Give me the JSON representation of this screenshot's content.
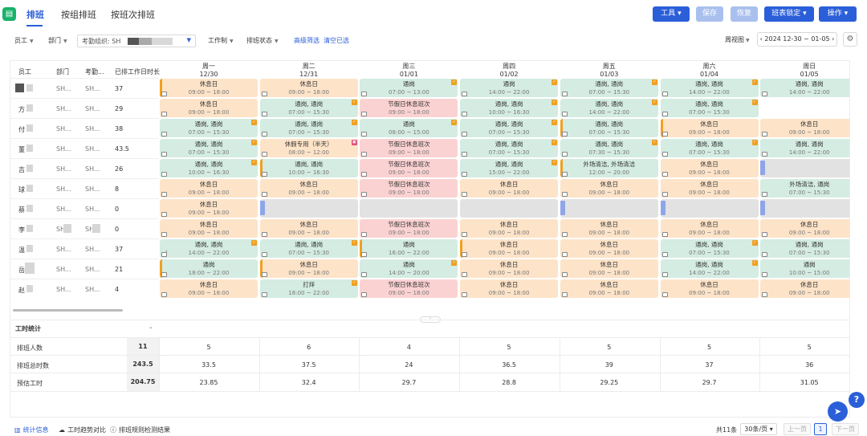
{
  "app_icon": "calendar-icon",
  "tabs": [
    {
      "label": "排班",
      "active": true
    },
    {
      "label": "按组排班",
      "active": false
    },
    {
      "label": "按班次排班",
      "active": false
    }
  ],
  "toolbar": {
    "tools": "工具",
    "save": "保存",
    "restore": "恢复",
    "lock": "班表锁定",
    "operate": "操作"
  },
  "filters": {
    "employee": "员工",
    "dept": "部门",
    "org_label": "考勤组织: SH",
    "work_system": "工作制",
    "shift_status": "排班状态",
    "advanced": "高级筛选",
    "clear": "清空已选",
    "view_mode": "周视图",
    "date_range": "2024 12-30 ~ 01-05",
    "prev_icon": "chevron-left-icon",
    "next_icon": "chevron-right-icon",
    "settings_icon": "gear-icon"
  },
  "columns": {
    "employee": "员工",
    "dept": "部门",
    "attendance": "考勤...",
    "scheduled_days": "已排工作日时长"
  },
  "days": [
    {
      "week": "周一",
      "date": "12/30"
    },
    {
      "week": "周二",
      "date": "12/31"
    },
    {
      "week": "周三",
      "date": "01/01"
    },
    {
      "week": "周四",
      "date": "01/02"
    },
    {
      "week": "周五",
      "date": "01/03"
    },
    {
      "week": "周六",
      "date": "01/04"
    },
    {
      "week": "周日",
      "date": "01/05"
    }
  ],
  "rows": [
    {
      "name": "",
      "dept": "SH...",
      "att": "SH...",
      "total": "37",
      "cells": [
        {
          "t": "rest",
          "l1": "休息日",
          "l2": "09:00 ~ 18:00",
          "bar": true
        },
        {
          "t": "rest",
          "l1": "休息日",
          "l2": "09:00 ~ 18:00"
        },
        {
          "t": "green",
          "l1": "通岗",
          "l2": "07:00 ~ 13:00",
          "badge": true
        },
        {
          "t": "green",
          "l1": "通岗",
          "l2": "14:00 ~ 22:00",
          "badge": true
        },
        {
          "t": "green",
          "l1": "通岗, 通岗",
          "l2": "07:00 ~ 15:30",
          "badge": true
        },
        {
          "t": "green",
          "l1": "通岗, 通岗",
          "l2": "14:00 ~ 22:00",
          "badge": true
        },
        {
          "t": "green",
          "l1": "通岗, 通岗",
          "l2": "14:00 ~ 22:00",
          "badge": true
        }
      ]
    },
    {
      "name": "方",
      "dept": "SH...",
      "att": "SH...",
      "total": "29",
      "cells": [
        {
          "t": "rest",
          "l1": "休息日",
          "l2": "09:00 ~ 18:00"
        },
        {
          "t": "green",
          "l1": "通岗, 通岗",
          "l2": "07:00 ~ 15:30",
          "badge": true
        },
        {
          "t": "red",
          "l1": "节假日休息班次",
          "l2": "09:00 ~ 18:00"
        },
        {
          "t": "green",
          "l1": "通岗, 通岗",
          "l2": "10:00 ~ 16:30",
          "badge": true
        },
        {
          "t": "green",
          "l1": "通岗, 通岗",
          "l2": "14:00 ~ 22:00",
          "badge": true
        },
        {
          "t": "green",
          "l1": "通岗, 通岗",
          "l2": "07:00 ~ 15:30",
          "badge": true
        },
        {
          "t": "white",
          "l1": "",
          "l2": ""
        }
      ]
    },
    {
      "name": "付",
      "dept": "SH...",
      "att": "SH...",
      "total": "38",
      "cells": [
        {
          "t": "green",
          "l1": "通岗, 通岗",
          "l2": "07:00 ~ 15:30",
          "badge": true
        },
        {
          "t": "green",
          "l1": "通岗, 通岗",
          "l2": "07:00 ~ 15:30",
          "badge": true
        },
        {
          "t": "green",
          "l1": "通岗",
          "l2": "08:00 ~ 15:00",
          "badge": true
        },
        {
          "t": "green",
          "l1": "通岗, 通岗",
          "l2": "07:00 ~ 15:30",
          "badge": true
        },
        {
          "t": "green",
          "l1": "通岗, 通岗",
          "l2": "07:00 ~ 15:30",
          "bar": true
        },
        {
          "t": "rest",
          "l1": "休息日",
          "l2": "09:00 ~ 18:00",
          "bar": true
        },
        {
          "t": "rest",
          "l1": "休息日",
          "l2": "09:00 ~ 18:00"
        }
      ]
    },
    {
      "name": "董",
      "dept": "SH...",
      "att": "SH...",
      "total": "43.5",
      "cells": [
        {
          "t": "green",
          "l1": "通岗, 通岗",
          "l2": "07:00 ~ 15:30",
          "badge": true
        },
        {
          "t": "rest",
          "l1": "休假专用（半天）",
          "l2": "08:00 ~ 12:00",
          "pink": true
        },
        {
          "t": "red",
          "l1": "节假日休息班次",
          "l2": "09:00 ~ 18:00"
        },
        {
          "t": "green",
          "l1": "通岗, 通岗",
          "l2": "07:00 ~ 15:30",
          "badge": true
        },
        {
          "t": "green",
          "l1": "通岗, 通岗",
          "l2": "07:30 ~ 15:30",
          "badge": true
        },
        {
          "t": "green",
          "l1": "通岗, 通岗",
          "l2": "07:00 ~ 15:30",
          "badge": true
        },
        {
          "t": "green",
          "l1": "通岗, 通岗",
          "l2": "14:00 ~ 22:00",
          "badge": true
        }
      ]
    },
    {
      "name": "吉",
      "dept": "SH...",
      "att": "SH...",
      "total": "26",
      "cells": [
        {
          "t": "green",
          "l1": "通岗, 通岗",
          "l2": "10:00 ~ 16:30",
          "badge": true
        },
        {
          "t": "green",
          "l1": "通岗, 通岗",
          "l2": "10:00 ~ 16:30",
          "bar": true
        },
        {
          "t": "red",
          "l1": "节假日休息班次",
          "l2": "09:00 ~ 18:00"
        },
        {
          "t": "green",
          "l1": "通岗, 通岗",
          "l2": "15:00 ~ 22:00",
          "badge": true
        },
        {
          "t": "green",
          "l1": "外场清洁, 外场清洁",
          "l2": "12:00 ~ 20:00",
          "bar": true
        },
        {
          "t": "rest",
          "l1": "休息日",
          "l2": "09:00 ~ 18:00"
        },
        {
          "t": "gray",
          "l1": "",
          "l2": "",
          "v": true
        }
      ]
    },
    {
      "name": "球",
      "dept": "SH...",
      "att": "SH...",
      "total": "8",
      "cells": [
        {
          "t": "rest",
          "l1": "休息日",
          "l2": "09:00 ~ 18:00"
        },
        {
          "t": "rest",
          "l1": "休息日",
          "l2": "09:00 ~ 18:00"
        },
        {
          "t": "red",
          "l1": "节假日休息班次",
          "l2": "09:00 ~ 18:00"
        },
        {
          "t": "rest",
          "l1": "休息日",
          "l2": "09:00 ~ 18:00"
        },
        {
          "t": "rest",
          "l1": "休息日",
          "l2": "09:00 ~ 18:00"
        },
        {
          "t": "rest",
          "l1": "休息日",
          "l2": "09:00 ~ 18:00"
        },
        {
          "t": "green",
          "l1": "外场清洁, 通岗",
          "l2": "07:00 ~ 15:30",
          "badge": true
        }
      ]
    },
    {
      "name": "蔡",
      "dept": "SH...",
      "att": "SH...",
      "total": "0",
      "cells": [
        {
          "t": "rest",
          "l1": "休息日",
          "l2": "09:00 ~ 18:00"
        },
        {
          "t": "gray",
          "l1": "",
          "l2": "",
          "v": true
        },
        {
          "t": "gray",
          "l1": "",
          "l2": ""
        },
        {
          "t": "gray",
          "l1": "",
          "l2": ""
        },
        {
          "t": "gray",
          "l1": "",
          "l2": "",
          "v": true
        },
        {
          "t": "gray",
          "l1": "",
          "l2": "",
          "v": true
        },
        {
          "t": "gray",
          "l1": "",
          "l2": "",
          "v": true
        }
      ]
    },
    {
      "name": "李",
      "dept": "SH",
      "att": "SH",
      "total": "0",
      "cells": [
        {
          "t": "rest",
          "l1": "休息日",
          "l2": "09:00 ~ 18:00"
        },
        {
          "t": "rest",
          "l1": "休息日",
          "l2": "09:00 ~ 18:00"
        },
        {
          "t": "red",
          "l1": "节假日休息班次",
          "l2": "09:00 ~ 18:00"
        },
        {
          "t": "rest",
          "l1": "休息日",
          "l2": "09:00 ~ 18:00"
        },
        {
          "t": "rest",
          "l1": "休息日",
          "l2": "09:00 ~ 18:00"
        },
        {
          "t": "rest",
          "l1": "休息日",
          "l2": "09:00 ~ 18:00"
        },
        {
          "t": "rest",
          "l1": "休息日",
          "l2": "09:00 ~ 18:00"
        }
      ]
    },
    {
      "name": "温",
      "dept": "SH...",
      "att": "SH...",
      "total": "37",
      "cells": [
        {
          "t": "green",
          "l1": "通岗, 通岗",
          "l2": "14:00 ~ 22:00",
          "badge": true
        },
        {
          "t": "green",
          "l1": "通岗, 通岗",
          "l2": "07:00 ~ 15:30",
          "badge": true
        },
        {
          "t": "green",
          "l1": "通岗",
          "l2": "16:00 ~ 22:00",
          "bar": true
        },
        {
          "t": "rest",
          "l1": "休息日",
          "l2": "09:00 ~ 18:00",
          "bar": true
        },
        {
          "t": "rest",
          "l1": "休息日",
          "l2": "09:00 ~ 18:00"
        },
        {
          "t": "green",
          "l1": "通岗, 通岗",
          "l2": "07:00 ~ 15:30",
          "badge": true
        },
        {
          "t": "green",
          "l1": "通岗, 通岗",
          "l2": "07:00 ~ 15:30",
          "badge": true
        }
      ]
    },
    {
      "name": "岳",
      "dept": "SH...",
      "att": "SH...",
      "total": "21",
      "cells": [
        {
          "t": "green",
          "l1": "通岗",
          "l2": "18:00 ~ 22:00",
          "bar": true
        },
        {
          "t": "rest",
          "l1": "休息日",
          "l2": "09:00 ~ 18:00",
          "bar": true
        },
        {
          "t": "green",
          "l1": "通岗",
          "l2": "14:00 ~ 20:00",
          "badge": true
        },
        {
          "t": "rest",
          "l1": "休息日",
          "l2": "09:00 ~ 18:00"
        },
        {
          "t": "rest",
          "l1": "休息日",
          "l2": "09:00 ~ 18:00"
        },
        {
          "t": "green",
          "l1": "通岗, 通岗",
          "l2": "14:00 ~ 22:00",
          "badge": true
        },
        {
          "t": "green",
          "l1": "通岗",
          "l2": "10:00 ~ 15:00",
          "badge": true
        }
      ]
    },
    {
      "name": "赵",
      "dept": "SH...",
      "att": "SH...",
      "total": "4",
      "cells": [
        {
          "t": "rest",
          "l1": "休息日",
          "l2": "09:00 ~ 18:00"
        },
        {
          "t": "green",
          "l1": "打烊",
          "l2": "18:00 ~ 22:00",
          "badge": true
        },
        {
          "t": "red",
          "l1": "节假日休息班次",
          "l2": "09:00 ~ 18:00"
        },
        {
          "t": "rest",
          "l1": "休息日",
          "l2": "09:00 ~ 18:00"
        },
        {
          "t": "rest",
          "l1": "休息日",
          "l2": "09:00 ~ 18:00"
        },
        {
          "t": "rest",
          "l1": "休息日",
          "l2": "09:00 ~ 18:00"
        },
        {
          "t": "rest",
          "l1": "休息日",
          "l2": "09:00 ~ 18:00"
        }
      ]
    }
  ],
  "stats": {
    "title": "工时统计",
    "rows": [
      {
        "label": "排班人数",
        "total": "11",
        "values": [
          "5",
          "6",
          "4",
          "5",
          "5",
          "5",
          "5"
        ]
      },
      {
        "label": "排班总时数",
        "total": "243.5",
        "values": [
          "33.5",
          "37.5",
          "24",
          "36.5",
          "39",
          "37",
          "36"
        ]
      },
      {
        "label": "预估工时",
        "total": "204.75",
        "values": [
          "23.85",
          "32.4",
          "29.7",
          "28.8",
          "29.25",
          "29.7",
          "31.05"
        ]
      }
    ]
  },
  "bottom": {
    "tabs": [
      {
        "label": "统计信息",
        "icon": "bar-chart-icon",
        "active": true
      },
      {
        "label": "工时趋势对比",
        "icon": "cloud-icon",
        "active": false
      },
      {
        "label": "排班规则检测结果",
        "icon": "info-icon",
        "active": false
      }
    ],
    "total": "共11条",
    "page_size": "30条/页",
    "prev": "上一页",
    "page": "1",
    "next": "下一页"
  },
  "colors": {
    "accent": "#2b5fd9",
    "rest": "#fde3c8",
    "work": "#d4ece2",
    "holiday": "#fbd2d2"
  }
}
